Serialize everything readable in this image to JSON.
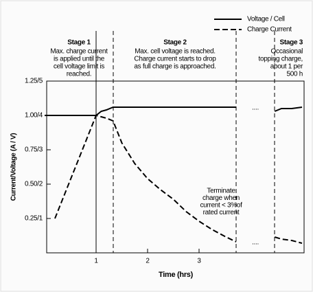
{
  "chart_data": {
    "type": "line",
    "x_label": "Time (hrs)",
    "y_label": "Current/Voltage (A / V)",
    "x": [
      0,
      0.2,
      1.0,
      1.1,
      1.2,
      1.33,
      1.5,
      1.75,
      2.0,
      2.25,
      2.5,
      2.75,
      3.0,
      3.25,
      3.5,
      3.72,
      4.1,
      4.47,
      4.6,
      4.8,
      5.0
    ],
    "series": [
      {
        "name": "Voltage / Cell",
        "color": "#000000",
        "dash": false,
        "values": [
          1.0,
          1.0,
          1.0,
          1.03,
          1.04,
          1.06,
          1.06,
          1.06,
          1.06,
          1.06,
          1.06,
          1.06,
          1.06,
          1.06,
          1.06,
          1.06,
          null,
          1.03,
          1.05,
          1.05,
          1.06
        ]
      },
      {
        "name": "Charge Current",
        "color": "#000000",
        "dash": true,
        "values": [
          null,
          0.25,
          1.0,
          0.99,
          0.98,
          0.96,
          0.8,
          0.65,
          0.54,
          0.46,
          0.39,
          0.3,
          0.23,
          0.17,
          0.12,
          0.08,
          null,
          0.115,
          0.1,
          0.09,
          0.07
        ]
      }
    ],
    "xlim": [
      0,
      5.0
    ],
    "xticks": [
      1,
      2,
      3
    ],
    "ylim": [
      0,
      1.25
    ],
    "yticks": [
      {
        "value": 0.25,
        "label": "0.25/1"
      },
      {
        "value": 0.5,
        "label": "0.50/2"
      },
      {
        "value": 0.75,
        "label": "0.75/3"
      },
      {
        "value": 1.0,
        "label": "1.00/4"
      },
      {
        "value": 1.25,
        "label": "1.25/5"
      }
    ],
    "stages": [
      {
        "title": "Stage 1",
        "lines": [
          "Max. charge current",
          "is applied until the",
          "cell voltage limit is",
          "reached."
        ]
      },
      {
        "title": "Stage 2",
        "lines": [
          "Max. cell voltage is reached.",
          "Charge current starts to drop",
          "as full charge is approached."
        ]
      },
      {
        "title": "Stage 3",
        "lines": [
          "Occasional",
          "topping charge,",
          "about 1 per",
          "500 h"
        ]
      }
    ],
    "annotation": [
      "Terminate",
      "charge when",
      "current < 3%of",
      "rated current"
    ],
    "gap_marks": [
      "....",
      "...."
    ]
  }
}
